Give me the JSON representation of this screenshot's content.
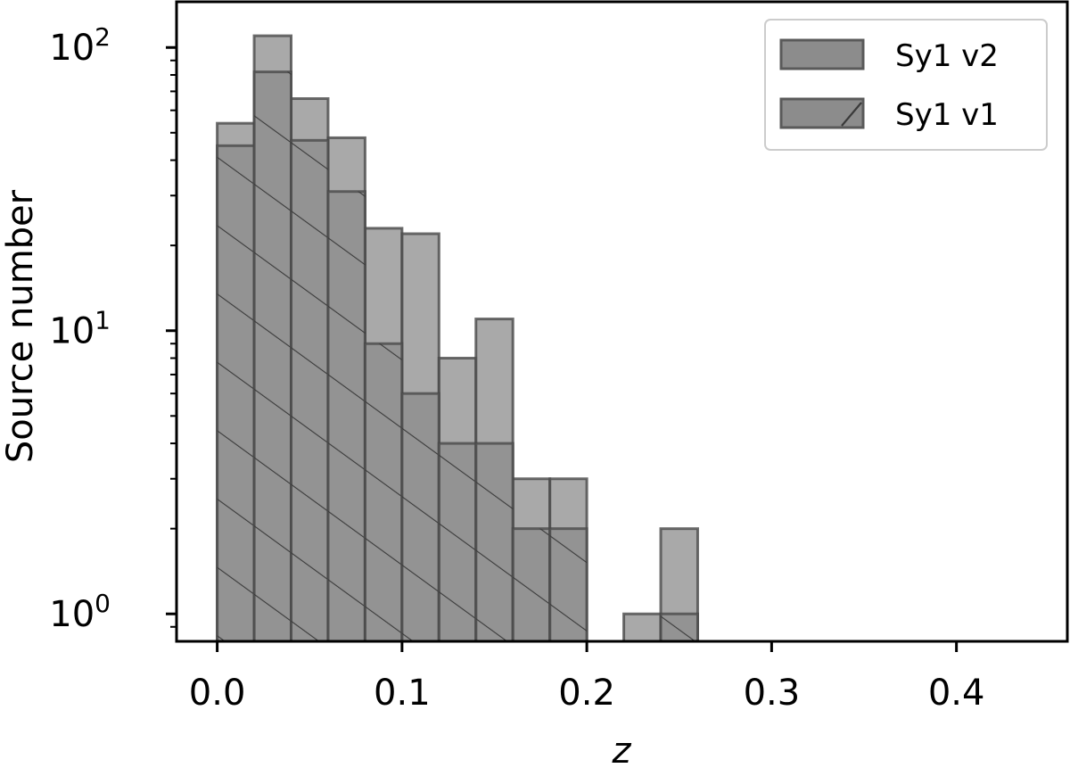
{
  "chart_data": {
    "type": "bar",
    "subtype": "histogram",
    "title": "",
    "xlabel": "z",
    "ylabel": "Source number",
    "xlim": [
      -0.022,
      0.46
    ],
    "ylim": [
      0.8,
      145
    ],
    "yscale": "log",
    "grid": false,
    "legend_position": "top-right",
    "x_ticks": [
      {
        "value": 0.0,
        "label": "0.0"
      },
      {
        "value": 0.1,
        "label": "0.1"
      },
      {
        "value": 0.2,
        "label": "0.2"
      },
      {
        "value": 0.3,
        "label": "0.3"
      },
      {
        "value": 0.4,
        "label": "0.4"
      }
    ],
    "y_ticks": [
      {
        "value": 1,
        "base": "10",
        "exp": "0"
      },
      {
        "value": 10,
        "base": "10",
        "exp": "1"
      },
      {
        "value": 100,
        "base": "10",
        "exp": "2"
      }
    ],
    "bin_edges": [
      0.0,
      0.02,
      0.04,
      0.06,
      0.08,
      0.1,
      0.12,
      0.14,
      0.16,
      0.18,
      0.2,
      0.22,
      0.24,
      0.26
    ],
    "series": [
      {
        "name": "Sy1 v2",
        "hatch": false,
        "color": "#8c8c8c",
        "values": [
          54,
          110,
          66,
          48,
          23,
          22,
          8,
          11,
          3,
          3,
          0,
          1,
          2
        ]
      },
      {
        "name": "Sy1 v1",
        "hatch": true,
        "color": "#8c8c8c",
        "values": [
          45,
          82,
          47,
          31,
          9,
          6,
          4,
          4,
          2,
          2,
          0,
          0,
          1
        ]
      }
    ]
  }
}
